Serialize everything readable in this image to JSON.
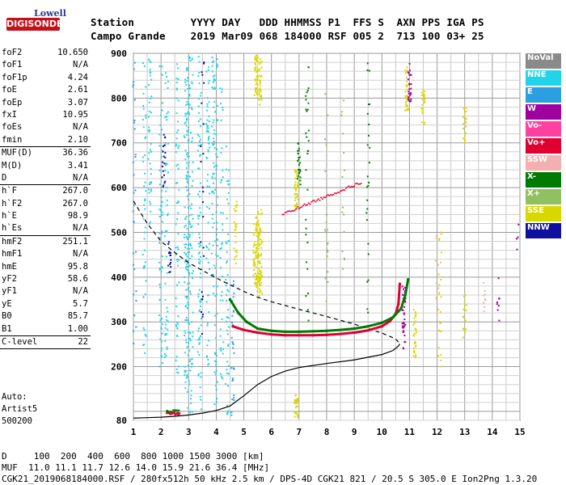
{
  "logo": {
    "line1": "Lowell",
    "line2": "DIGISONDE"
  },
  "header": {
    "row1": "Station         YYYY DAY   DDD HHMMSS P1  FFS S  AXN PPS IGA PS",
    "row2": "Campo Grande    2019 Mar09 068 184000 RSF 005 2  713 100 03+ 25"
  },
  "params": [
    {
      "k": "foF2",
      "v": "10.650"
    },
    {
      "k": "foF1",
      "v": "N/A"
    },
    {
      "k": "foF1p",
      "v": "4.24"
    },
    {
      "k": "foE",
      "v": "2.61"
    },
    {
      "k": "foEp",
      "v": "3.07"
    },
    {
      "k": "fxI",
      "v": "10.95"
    },
    {
      "k": "foEs",
      "v": "N/A"
    },
    {
      "k": "fmin",
      "v": "2.10"
    },
    {
      "sep": true
    },
    {
      "k": "MUF(D)",
      "v": "36.36"
    },
    {
      "k": "M(D)",
      "v": "3.41"
    },
    {
      "k": "D",
      "v": "N/A"
    },
    {
      "sep": true
    },
    {
      "k": "h`F",
      "v": "267.0"
    },
    {
      "k": "h`F2",
      "v": "267.0"
    },
    {
      "k": "h`E",
      "v": "98.9"
    },
    {
      "k": "h`Es",
      "v": "N/A"
    },
    {
      "sep": true
    },
    {
      "k": "hmF2",
      "v": "251.1"
    },
    {
      "k": "hmF1",
      "v": "N/A"
    },
    {
      "k": "hmE",
      "v": "95.8"
    },
    {
      "k": "yF2",
      "v": "58.6"
    },
    {
      "k": "yF1",
      "v": "N/A"
    },
    {
      "k": "yE",
      "v": "5.7"
    },
    {
      "k": "B0",
      "v": "85.7"
    },
    {
      "k": "B1",
      "v": "1.00"
    },
    {
      "sep": true
    },
    {
      "k": "C-level",
      "v": "22"
    },
    {
      "sep": true
    }
  ],
  "auto": {
    "l1": "Auto:",
    "l2": "Artist5",
    "l3": "500200"
  },
  "legend": [
    {
      "label": "NoVal",
      "color": "#8a8a8a"
    },
    {
      "label": "NNE",
      "color": "#22d4e8"
    },
    {
      "label": "E",
      "color": "#2aa0e0"
    },
    {
      "label": "W",
      "color": "#a000a0"
    },
    {
      "label": "Vo-",
      "color": "#ff40a0"
    },
    {
      "label": "Vo+",
      "color": "#e00030"
    },
    {
      "label": "SSW",
      "color": "#f4b0b0"
    },
    {
      "label": "X-",
      "color": "#007a00"
    },
    {
      "label": "X+",
      "color": "#90c060"
    },
    {
      "label": "SSE",
      "color": "#d8d800"
    },
    {
      "label": "NNW",
      "color": "#1010a0"
    }
  ],
  "footer": {
    "line1": "D     100  200  400  600  800 1000 1500 3000 [km]",
    "line2": "MUF  11.0 11.1 11.7 12.6 14.0 15.9 21.6 36.4 [MHz]",
    "line3": "CGK21_2019068184000.RSF / 280fx512h 50 kHz 2.5 km / DPS-4D CGK21 821 / 20.5 S 305.0 E Ion2Png 1.3.20"
  },
  "chart_data": {
    "type": "scatter",
    "x_ticks": [
      "1",
      "2",
      "3",
      "4",
      "5",
      "6",
      "7",
      "8",
      "9",
      "10",
      "11",
      "12",
      "13",
      "14",
      "15"
    ],
    "y_ticks": [
      "80",
      "200",
      "300",
      "400",
      "500",
      "600",
      "700",
      "800",
      "900"
    ],
    "xlim": [
      1,
      15
    ],
    "ylim": [
      80,
      900
    ],
    "series": [
      {
        "name": "Vo+",
        "color": "#e00030",
        "x": [
          4.6,
          5.0,
          5.5,
          6.0,
          6.5,
          7.0,
          7.5,
          8.0,
          8.5,
          9.0,
          9.5,
          10.0,
          10.3,
          10.5,
          10.6,
          10.65
        ],
        "y": [
          290,
          282,
          276,
          272,
          270,
          270,
          270,
          271,
          273,
          276,
          281,
          290,
          302,
          318,
          340,
          385
        ]
      },
      {
        "name": "X-",
        "color": "#007a00",
        "x": [
          4.5,
          4.8,
          5.1,
          5.5,
          6.0,
          6.5,
          7.0,
          7.5,
          8.0,
          8.5,
          9.0,
          9.5,
          10.0,
          10.4,
          10.7,
          10.85,
          10.95
        ],
        "y": [
          350,
          320,
          300,
          285,
          280,
          278,
          278,
          279,
          280,
          282,
          285,
          290,
          298,
          310,
          330,
          360,
          395
        ]
      }
    ],
    "profile_dashed": {
      "x": [
        1.0,
        1.5,
        2.0,
        2.5,
        3.0,
        3.5,
        4.0,
        4.5,
        5.0,
        5.5,
        6.0,
        7.0,
        8.0,
        9.0,
        10.0,
        10.5,
        10.65
      ],
      "y": [
        570,
        520,
        480,
        455,
        432,
        415,
        398,
        383,
        368,
        355,
        345,
        328,
        312,
        295,
        275,
        262,
        251
      ]
    },
    "profile_solid": {
      "x": [
        1.0,
        1.5,
        2.0,
        2.5,
        3.0,
        3.5,
        4.0,
        4.5,
        5.0,
        5.5,
        6.0,
        6.5,
        7.0,
        8.0,
        9.0,
        10.0,
        10.4,
        10.6,
        10.65
      ],
      "y": [
        85,
        86,
        87,
        89,
        92,
        96,
        102,
        112,
        135,
        160,
        178,
        190,
        198,
        207,
        215,
        227,
        236,
        246,
        251
      ]
    }
  }
}
